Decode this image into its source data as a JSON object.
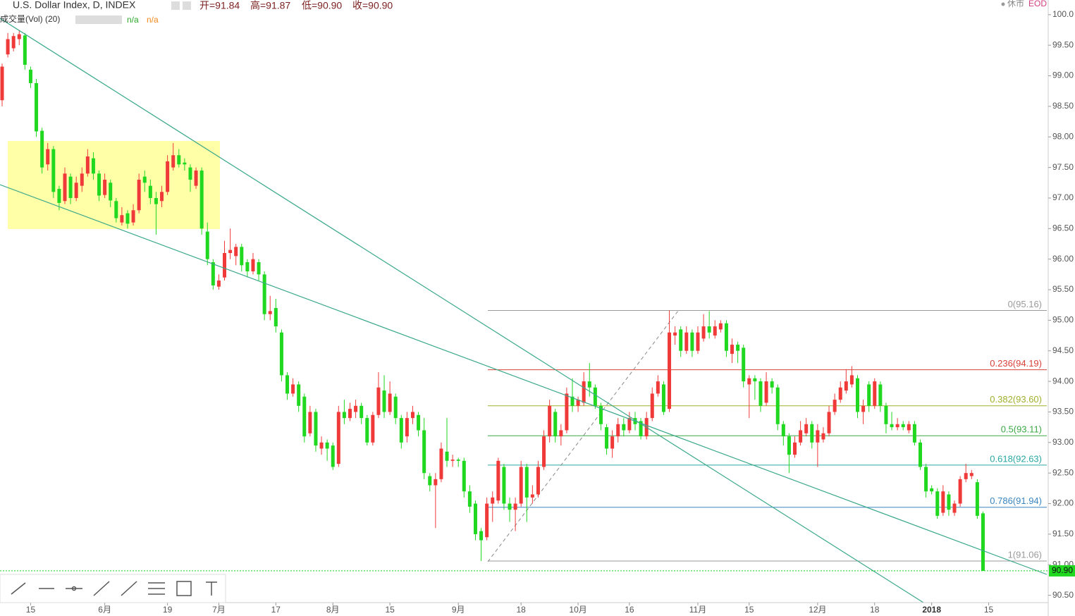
{
  "chart_data": {
    "type": "candlestick",
    "title": "U.S. Dollar Index, D, INDEX",
    "ohlc_header": [
      "开=91.84",
      "高=91.87",
      "低=90.90",
      "收=90.90"
    ],
    "volume_label": "成交量(Vol) (20)",
    "volume_values": [
      "n/a",
      "n/a"
    ],
    "status": "休市",
    "mode": "EOD",
    "up_color": "#f03a3a",
    "down_color": "#1fd81f",
    "ylim": [
      90.38,
      100.24
    ],
    "yticks": [
      {
        "value": 90.5,
        "label": "90.50"
      },
      {
        "value": 91,
        "label": "91.00"
      },
      {
        "value": 91.5,
        "label": "91.50"
      },
      {
        "value": 92,
        "label": "92.00"
      },
      {
        "value": 92.5,
        "label": "92.50"
      },
      {
        "value": 93,
        "label": "93.00"
      },
      {
        "value": 93.5,
        "label": "93.50"
      },
      {
        "value": 94,
        "label": "94.00"
      },
      {
        "value": 94.5,
        "label": "94.50"
      },
      {
        "value": 95,
        "label": "95.00"
      },
      {
        "value": 95.5,
        "label": "95.50"
      },
      {
        "value": 96,
        "label": "96.00"
      },
      {
        "value": 96.5,
        "label": "96.50"
      },
      {
        "value": 97,
        "label": "97.00"
      },
      {
        "value": 97.5,
        "label": "97.50"
      },
      {
        "value": 98,
        "label": "98.00"
      },
      {
        "value": 98.5,
        "label": "98.50"
      },
      {
        "value": 99,
        "label": "99.00"
      },
      {
        "value": 99.5,
        "label": "99.50"
      },
      {
        "value": 100,
        "label": "100.0"
      }
    ],
    "last": {
      "value": 90.9,
      "label": "90.90"
    },
    "fib_levels": [
      {
        "label": "0(95.16)",
        "value": 95.16,
        "color": "#9a9a9a"
      },
      {
        "label": "0.236(94.19)",
        "value": 94.19,
        "color": "#d9403a"
      },
      {
        "label": "0.382(93.60)",
        "value": 93.6,
        "color": "#9fb02a"
      },
      {
        "label": "0.5(93.11)",
        "value": 93.11,
        "color": "#3aa845"
      },
      {
        "label": "0.618(92.63)",
        "value": 92.63,
        "color": "#2aa8a0"
      },
      {
        "label": "0.786(91.94)",
        "value": 91.94,
        "color": "#3a86c0"
      },
      {
        "label": "1(91.06)",
        "value": 91.06,
        "color": "#9a9a9a"
      }
    ],
    "categories": [
      null,
      null,
      null,
      null,
      null,
      "15",
      null,
      null,
      null,
      null,
      null,
      null,
      null,
      null,
      null,
      null,
      null,
      null,
      "6月",
      null,
      null,
      null,
      null,
      null,
      null,
      null,
      null,
      null,
      null,
      "19",
      null,
      null,
      null,
      null,
      null,
      null,
      null,
      null,
      "7月",
      null,
      null,
      null,
      null,
      null,
      null,
      null,
      null,
      null,
      "17",
      null,
      null,
      null,
      null,
      null,
      null,
      null,
      null,
      null,
      "8月",
      null,
      null,
      null,
      null,
      null,
      null,
      null,
      null,
      null,
      "15",
      null,
      null,
      null,
      null,
      null,
      null,
      null,
      null,
      null,
      null,
      null,
      "9月",
      null,
      null,
      null,
      null,
      null,
      null,
      null,
      null,
      null,
      null,
      "18",
      null,
      null,
      null,
      null,
      null,
      null,
      null,
      null,
      null,
      "10月",
      null,
      null,
      null,
      null,
      null,
      null,
      null,
      null,
      "16",
      null,
      null,
      null,
      null,
      null,
      null,
      null,
      null,
      null,
      null,
      null,
      "11月",
      null,
      null,
      null,
      null,
      null,
      null,
      null,
      null,
      "15",
      null,
      null,
      null,
      null,
      null,
      null,
      null,
      null,
      null,
      null,
      null,
      "12月",
      null,
      null,
      null,
      null,
      null,
      null,
      null,
      null,
      null,
      "18",
      null,
      null,
      null,
      null,
      null,
      null,
      null,
      null,
      null,
      "2018",
      null,
      null,
      null,
      null,
      null,
      null,
      null,
      null,
      null,
      "15"
    ],
    "ohlc": [
      [
        98.6,
        99.2,
        98.5,
        99.15
      ],
      [
        99.35,
        99.7,
        99.3,
        99.6
      ],
      [
        99.45,
        99.7,
        99.4,
        99.65
      ],
      [
        99.6,
        99.75,
        99.5,
        99.68
      ],
      [
        99.66,
        99.7,
        99.1,
        99.18
      ],
      [
        99.1,
        99.15,
        98.8,
        98.88
      ],
      [
        98.88,
        98.95,
        98.0,
        98.09
      ],
      [
        98.1,
        98.15,
        97.4,
        97.5
      ],
      [
        97.55,
        97.9,
        97.45,
        97.8
      ],
      [
        97.8,
        97.85,
        97.0,
        97.1
      ],
      [
        97.15,
        97.2,
        96.8,
        96.92
      ],
      [
        96.95,
        97.5,
        96.9,
        97.4
      ],
      [
        97.35,
        97.4,
        96.9,
        97.0
      ],
      [
        97.0,
        97.35,
        96.95,
        97.25
      ],
      [
        97.2,
        97.5,
        97.1,
        97.4
      ],
      [
        97.4,
        97.8,
        97.35,
        97.68
      ],
      [
        97.65,
        97.75,
        97.3,
        97.4
      ],
      [
        97.4,
        97.45,
        96.95,
        97.04
      ],
      [
        97.05,
        97.4,
        97.0,
        97.3
      ],
      [
        97.25,
        97.3,
        96.85,
        96.96
      ],
      [
        96.95,
        97.0,
        96.6,
        96.67
      ],
      [
        96.6,
        96.85,
        96.55,
        96.72
      ],
      [
        96.75,
        96.8,
        96.5,
        96.58
      ],
      [
        96.6,
        96.9,
        96.55,
        96.8
      ],
      [
        96.8,
        97.4,
        96.75,
        97.3
      ],
      [
        97.35,
        97.45,
        97.1,
        97.25
      ],
      [
        97.2,
        97.3,
        96.9,
        97.0
      ],
      [
        97.0,
        97.1,
        96.4,
        96.9
      ],
      [
        96.95,
        97.2,
        96.85,
        97.1
      ],
      [
        97.1,
        97.7,
        97.05,
        97.6
      ],
      [
        97.5,
        97.9,
        97.45,
        97.7
      ],
      [
        97.7,
        97.8,
        97.5,
        97.55
      ],
      [
        97.58,
        97.65,
        97.45,
        97.55
      ],
      [
        97.5,
        97.55,
        97.1,
        97.3
      ],
      [
        97.2,
        97.5,
        97.15,
        97.45
      ],
      [
        97.45,
        97.5,
        96.4,
        96.5
      ],
      [
        96.45,
        96.6,
        95.9,
        96.0
      ],
      [
        95.95,
        96.0,
        95.5,
        95.57
      ],
      [
        95.55,
        95.75,
        95.5,
        95.65
      ],
      [
        95.7,
        96.3,
        95.65,
        96.1
      ],
      [
        96.1,
        96.5,
        96.0,
        96.15
      ],
      [
        96.05,
        96.25,
        95.9,
        96.2
      ],
      [
        96.2,
        96.25,
        95.8,
        95.9
      ],
      [
        95.95,
        96.0,
        95.7,
        95.8
      ],
      [
        95.8,
        96.1,
        95.75,
        96.0
      ],
      [
        95.95,
        96.0,
        95.65,
        95.75
      ],
      [
        95.75,
        95.8,
        95.0,
        95.1
      ],
      [
        95.1,
        95.4,
        95.0,
        95.15
      ],
      [
        95.2,
        95.35,
        94.8,
        94.9
      ],
      [
        94.8,
        94.85,
        94.0,
        94.1
      ],
      [
        94.1,
        94.15,
        93.7,
        93.8
      ],
      [
        93.8,
        94.05,
        93.75,
        93.95
      ],
      [
        93.95,
        94.0,
        93.5,
        93.6
      ],
      [
        93.75,
        93.8,
        93.0,
        93.1
      ],
      [
        93.15,
        93.6,
        93.1,
        93.5
      ],
      [
        93.5,
        93.55,
        92.85,
        92.95
      ],
      [
        92.9,
        93.1,
        92.8,
        93.0
      ],
      [
        93.0,
        93.05,
        92.7,
        92.9
      ],
      [
        92.95,
        93.0,
        92.55,
        92.6
      ],
      [
        92.65,
        93.6,
        92.6,
        93.5
      ],
      [
        93.5,
        93.7,
        93.3,
        93.4
      ],
      [
        93.4,
        93.65,
        93.35,
        93.55
      ],
      [
        93.5,
        93.7,
        93.4,
        93.6
      ],
      [
        93.6,
        93.65,
        93.3,
        93.4
      ],
      [
        93.4,
        93.45,
        92.95,
        93.0
      ],
      [
        93.0,
        93.5,
        92.95,
        93.45
      ],
      [
        93.45,
        94.15,
        93.4,
        93.9
      ],
      [
        93.85,
        94.1,
        93.4,
        93.5
      ],
      [
        93.5,
        94.0,
        93.45,
        93.8
      ],
      [
        93.75,
        93.8,
        93.3,
        93.4
      ],
      [
        93.4,
        93.45,
        92.9,
        93.0
      ],
      [
        93.1,
        93.5,
        93.0,
        93.4
      ],
      [
        93.4,
        93.6,
        93.3,
        93.5
      ],
      [
        93.45,
        93.5,
        93.1,
        93.2
      ],
      [
        93.2,
        93.4,
        92.4,
        92.5
      ],
      [
        92.45,
        92.5,
        92.2,
        92.3
      ],
      [
        92.3,
        92.5,
        91.6,
        92.4
      ],
      [
        92.4,
        93.0,
        92.35,
        92.9
      ],
      [
        92.85,
        93.4,
        92.6,
        92.7
      ],
      [
        92.7,
        92.8,
        92.6,
        92.72
      ],
      [
        92.72,
        92.75,
        92.6,
        92.7
      ],
      [
        92.7,
        92.75,
        92.1,
        92.2
      ],
      [
        92.2,
        92.3,
        91.85,
        91.95
      ],
      [
        92.0,
        92.05,
        91.4,
        91.5
      ],
      [
        91.55,
        91.6,
        91.06,
        91.4
      ],
      [
        91.45,
        92.1,
        91.4,
        92.0
      ],
      [
        92.0,
        92.2,
        91.7,
        92.1
      ],
      [
        92.05,
        92.75,
        92.0,
        92.7
      ],
      [
        92.6,
        92.65,
        91.9,
        92.0
      ],
      [
        92.0,
        92.1,
        91.7,
        91.9
      ],
      [
        91.9,
        92.1,
        91.55,
        92.0
      ],
      [
        92.0,
        92.7,
        91.95,
        92.6
      ],
      [
        92.6,
        92.65,
        91.7,
        92.1
      ],
      [
        92.1,
        92.3,
        92.0,
        92.15
      ],
      [
        92.15,
        92.7,
        92.1,
        92.6
      ],
      [
        92.6,
        93.2,
        92.55,
        93.1
      ],
      [
        93.1,
        93.7,
        93.0,
        93.6
      ],
      [
        93.5,
        93.55,
        93.0,
        93.1
      ],
      [
        93.1,
        93.3,
        92.95,
        93.2
      ],
      [
        93.2,
        93.9,
        93.15,
        93.8
      ],
      [
        93.75,
        94.05,
        93.5,
        93.6
      ],
      [
        93.6,
        93.75,
        93.5,
        93.7
      ],
      [
        93.65,
        94.15,
        93.6,
        94.0
      ],
      [
        94.0,
        94.3,
        93.75,
        93.9
      ],
      [
        93.9,
        93.95,
        93.55,
        93.6
      ],
      [
        93.6,
        93.65,
        93.2,
        93.3
      ],
      [
        93.25,
        93.3,
        92.8,
        92.9
      ],
      [
        92.9,
        93.2,
        92.75,
        93.1
      ],
      [
        93.1,
        93.4,
        93.0,
        93.3
      ],
      [
        93.3,
        93.4,
        93.1,
        93.2
      ],
      [
        93.2,
        93.5,
        93.15,
        93.4
      ],
      [
        93.4,
        93.5,
        93.2,
        93.3
      ],
      [
        93.35,
        93.4,
        93.05,
        93.1
      ],
      [
        93.1,
        93.5,
        93.05,
        93.4
      ],
      [
        93.4,
        93.9,
        93.35,
        93.8
      ],
      [
        93.8,
        94.1,
        93.75,
        94.0
      ],
      [
        93.95,
        94.0,
        93.45,
        93.5
      ],
      [
        93.55,
        95.16,
        93.5,
        94.8
      ],
      [
        94.75,
        94.9,
        94.6,
        94.8
      ],
      [
        94.85,
        94.9,
        94.4,
        94.5
      ],
      [
        94.5,
        94.9,
        94.45,
        94.8
      ],
      [
        94.8,
        94.85,
        94.4,
        94.5
      ],
      [
        94.5,
        94.9,
        94.45,
        94.8
      ],
      [
        94.7,
        95.1,
        94.65,
        94.9
      ],
      [
        94.9,
        95.15,
        94.7,
        94.8
      ],
      [
        94.75,
        95.0,
        94.7,
        94.9
      ],
      [
        94.85,
        95.0,
        94.8,
        94.95
      ],
      [
        94.95,
        95.0,
        94.4,
        94.5
      ],
      [
        94.45,
        94.7,
        94.3,
        94.6
      ],
      [
        94.6,
        94.65,
        94.3,
        94.5
      ],
      [
        94.55,
        94.6,
        93.9,
        94.0
      ],
      [
        93.95,
        94.1,
        93.4,
        94.05
      ],
      [
        94.05,
        94.1,
        93.7,
        94.0
      ],
      [
        94.0,
        94.05,
        93.5,
        93.6
      ],
      [
        93.65,
        94.15,
        93.6,
        94.0
      ],
      [
        94.0,
        94.05,
        93.8,
        93.9
      ],
      [
        93.9,
        93.95,
        93.2,
        93.3
      ],
      [
        93.3,
        93.35,
        92.95,
        93.1
      ],
      [
        93.1,
        93.15,
        92.5,
        92.8
      ],
      [
        92.8,
        93.1,
        92.75,
        93.0
      ],
      [
        93.0,
        93.35,
        92.95,
        93.2
      ],
      [
        93.15,
        93.4,
        93.1,
        93.3
      ],
      [
        93.3,
        93.35,
        92.9,
        93.0
      ],
      [
        93.0,
        93.3,
        92.6,
        93.2
      ],
      [
        93.05,
        93.25,
        93.0,
        93.15
      ],
      [
        93.15,
        93.6,
        93.1,
        93.5
      ],
      [
        93.5,
        93.8,
        93.45,
        93.7
      ],
      [
        93.7,
        94.0,
        93.65,
        93.9
      ],
      [
        93.85,
        94.2,
        93.8,
        94.0
      ],
      [
        93.95,
        94.25,
        93.9,
        94.1
      ],
      [
        94.05,
        94.1,
        93.4,
        93.5
      ],
      [
        93.5,
        93.7,
        93.3,
        93.6
      ],
      [
        93.95,
        94.0,
        93.5,
        93.6
      ],
      [
        93.6,
        94.05,
        93.55,
        94.0
      ],
      [
        93.95,
        94.0,
        93.5,
        93.6
      ],
      [
        93.6,
        93.65,
        93.15,
        93.3
      ],
      [
        93.3,
        93.5,
        93.2,
        93.25
      ],
      [
        93.25,
        93.4,
        93.2,
        93.3
      ],
      [
        93.3,
        93.35,
        93.2,
        93.25
      ],
      [
        93.2,
        93.35,
        93.15,
        93.3
      ],
      [
        93.3,
        93.35,
        92.95,
        93.0
      ],
      [
        93.0,
        93.05,
        92.55,
        92.6
      ],
      [
        92.6,
        92.65,
        92.1,
        92.2
      ],
      [
        92.25,
        92.3,
        92.15,
        92.2
      ],
      [
        92.2,
        92.25,
        91.75,
        91.8
      ],
      [
        91.85,
        92.3,
        91.8,
        92.2
      ],
      [
        92.15,
        92.2,
        91.8,
        91.9
      ],
      [
        91.85,
        92.05,
        91.8,
        92.0
      ],
      [
        92.0,
        92.45,
        91.95,
        92.4
      ],
      [
        92.4,
        92.65,
        92.35,
        92.5
      ],
      [
        92.45,
        92.55,
        92.4,
        92.5
      ],
      [
        92.35,
        92.4,
        91.75,
        91.8
      ],
      [
        91.84,
        91.87,
        90.9,
        90.9
      ],
      null
    ]
  }
}
